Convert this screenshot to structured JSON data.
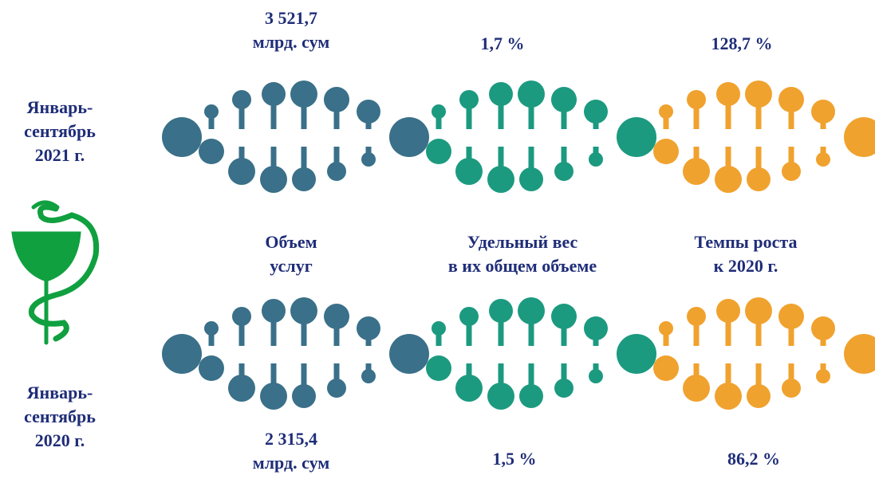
{
  "periods": [
    {
      "label": [
        "Январь-",
        "сентябрь",
        "2021 г."
      ],
      "values": [
        [
          "3 521,7",
          "млрд. сум"
        ],
        [
          "1,7 %"
        ],
        [
          "128,7 %"
        ]
      ]
    },
    {
      "label": [
        "Январь-",
        "сентябрь",
        "2020 г."
      ],
      "values": [
        [
          "2 315,4",
          "млрд. сум"
        ],
        [
          "1,5 %"
        ],
        [
          "86,2 %"
        ]
      ]
    }
  ],
  "metrics": [
    [
      "Объем",
      "услуг"
    ],
    [
      "Удельный вес",
      "в их общем объеме"
    ],
    [
      "Темпы роста",
      "к 2020 г."
    ]
  ]
}
